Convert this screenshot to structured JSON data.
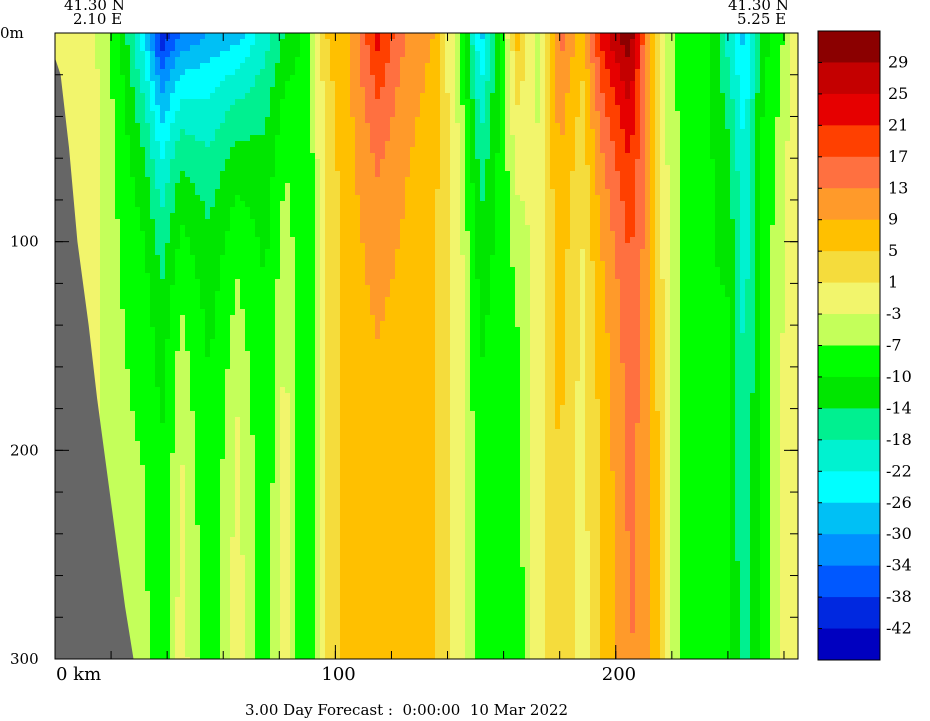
{
  "header": {
    "left_lat": "41.30 N",
    "left_lon": "2.10 E",
    "right_lat": "41.30 N",
    "right_lon": "5.25 E"
  },
  "footer": {
    "forecast": "3.00 Day Forecast :  0:00:00  10 Mar 2022"
  },
  "chart_data": {
    "type": "heatmap",
    "title": "",
    "xlabel": "",
    "ylabel": "",
    "x_unit_label": "km",
    "y_unit_label": "m",
    "x_range": [
      0,
      265
    ],
    "y_range": [
      0,
      300
    ],
    "y_inverted": true,
    "x_ticks": [
      {
        "value": 0,
        "label": "0 km"
      },
      {
        "value": 100,
        "label": "100"
      },
      {
        "value": 200,
        "label": "200"
      }
    ],
    "y_ticks": [
      {
        "value": 0,
        "label": "0m"
      },
      {
        "value": 100,
        "label": "100"
      },
      {
        "value": 200,
        "label": "200"
      },
      {
        "value": 300,
        "label": "300"
      }
    ],
    "colorbar": {
      "levels": [
        31,
        27,
        23,
        19,
        15,
        11,
        7,
        3,
        -1,
        -5,
        -8,
        -12,
        -16,
        -20,
        -24,
        -28,
        -32,
        -36,
        -40,
        -44
      ],
      "labels": [
        "29",
        "25",
        "21",
        "17",
        "13",
        "9",
        "5",
        "1",
        "-3",
        "-7",
        "-10",
        "-14",
        "-18",
        "-22",
        "-26",
        "-30",
        "-34",
        "-38",
        "-42"
      ],
      "colors": [
        "#8b0000",
        "#c40000",
        "#e60000",
        "#ff4000",
        "#ff7040",
        "#ff9a2a",
        "#ffc000",
        "#f5dc3c",
        "#f2f56c",
        "#c4ff5a",
        "#00ff00",
        "#00e600",
        "#00f090",
        "#00f2d0",
        "#00ffff",
        "#00c0f5",
        "#0090ff",
        "#0058ff",
        "#0028e0",
        "#0000c0"
      ]
    },
    "terrain": {
      "color": "#666666",
      "bottom_depth_profile": [
        {
          "km": 0,
          "depth": 12
        },
        {
          "km": 2,
          "depth": 20
        },
        {
          "km": 5,
          "depth": 55
        },
        {
          "km": 8,
          "depth": 100
        },
        {
          "km": 12,
          "depth": 140
        },
        {
          "km": 15,
          "depth": 175
        },
        {
          "km": 18,
          "depth": 205
        },
        {
          "km": 22,
          "depth": 245
        },
        {
          "km": 25,
          "depth": 275
        },
        {
          "km": 28,
          "depth": 300
        }
      ]
    },
    "columns": [
      {
        "km": 2,
        "surface": -5,
        "deep": -3
      },
      {
        "km": 12,
        "surface": -3,
        "deep": -3
      },
      {
        "km": 22,
        "surface": -10,
        "deep": -7
      },
      {
        "km": 32,
        "surface": -28,
        "deep": -7
      },
      {
        "km": 38,
        "surface": -44,
        "deep": -10
      },
      {
        "km": 45,
        "surface": -36,
        "deep": -3
      },
      {
        "km": 55,
        "surface": -32,
        "deep": -10
      },
      {
        "km": 65,
        "surface": -30,
        "deep": -3
      },
      {
        "km": 75,
        "surface": -22,
        "deep": -10
      },
      {
        "km": 82,
        "surface": -16,
        "deep": -3
      },
      {
        "km": 90,
        "surface": -10,
        "deep": -12
      },
      {
        "km": 97,
        "surface": 3,
        "deep": -1
      },
      {
        "km": 105,
        "surface": 7,
        "deep": 5
      },
      {
        "km": 115,
        "surface": 21,
        "deep": 5
      },
      {
        "km": 125,
        "surface": 11,
        "deep": 5
      },
      {
        "km": 135,
        "surface": 7,
        "deep": 3
      },
      {
        "km": 145,
        "surface": -10,
        "deep": -3
      },
      {
        "km": 152,
        "surface": -30,
        "deep": -10
      },
      {
        "km": 158,
        "surface": -14,
        "deep": -10
      },
      {
        "km": 165,
        "surface": 5,
        "deep": -10
      },
      {
        "km": 172,
        "surface": -7,
        "deep": -3
      },
      {
        "km": 180,
        "surface": 13,
        "deep": 3
      },
      {
        "km": 188,
        "surface": 5,
        "deep": -3
      },
      {
        "km": 195,
        "surface": 21,
        "deep": 3
      },
      {
        "km": 205,
        "surface": 31,
        "deep": 11
      },
      {
        "km": 212,
        "surface": 7,
        "deep": 9
      },
      {
        "km": 218,
        "surface": -7,
        "deep": -3
      },
      {
        "km": 225,
        "surface": -10,
        "deep": -10
      },
      {
        "km": 233,
        "surface": -10,
        "deep": -12
      },
      {
        "km": 240,
        "surface": -22,
        "deep": -10
      },
      {
        "km": 246,
        "surface": -30,
        "deep": -20
      },
      {
        "km": 252,
        "surface": -14,
        "deep": -10
      },
      {
        "km": 258,
        "surface": -10,
        "deep": -5
      },
      {
        "km": 264,
        "surface": -3,
        "deep": -3
      }
    ]
  }
}
